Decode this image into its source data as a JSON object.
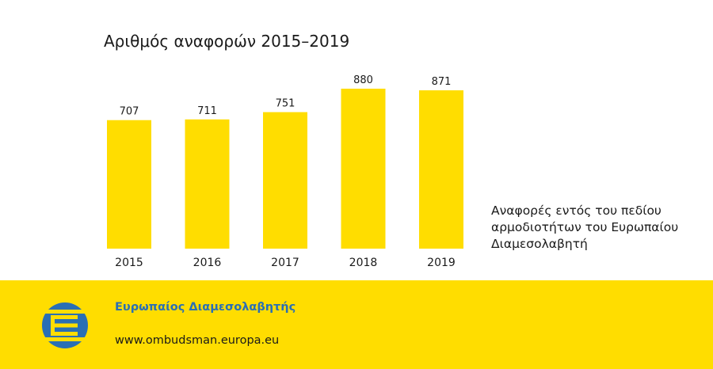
{
  "colors": {
    "bar": "#FFDD00",
    "footer_bg": "#FFDD00",
    "brand_blue": "#2A6FB4",
    "text": "#1a1a1a"
  },
  "chart_data": {
    "type": "bar",
    "title": "Αριθμός αναφορών 2015–2019",
    "categories": [
      "2015",
      "2016",
      "2017",
      "2018",
      "2019"
    ],
    "values": [
      707,
      711,
      751,
      880,
      871
    ],
    "ylim": [
      0,
      880
    ],
    "grid": false,
    "legend": {
      "text": "Αναφορές εντός του πεδίου\nαρμοδιοτήτων του Ευρωπαίου\nΔιαμεσολαβητή",
      "placement": "right"
    }
  },
  "footer": {
    "org_name": "Ευρωπαίος Διαμεσολαβητής",
    "url": "www.ombudsman.europa.eu",
    "logo_icon": "european-ombudsman-logo-icon"
  }
}
